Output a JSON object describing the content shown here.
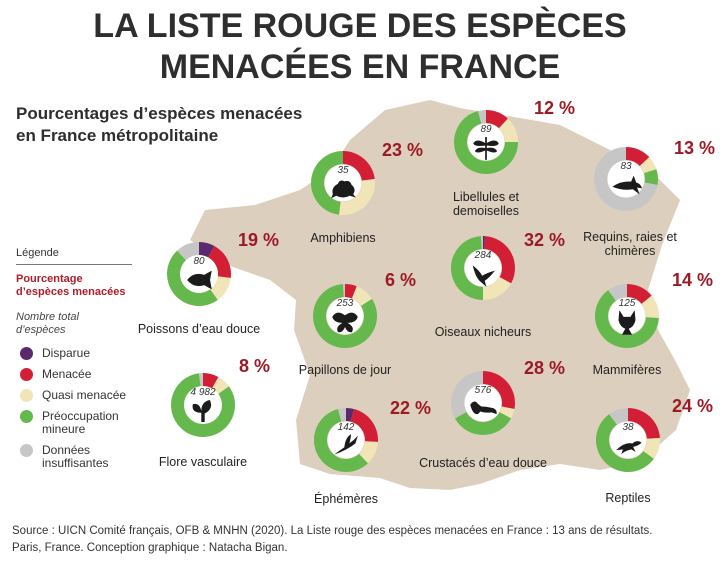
{
  "title_line1": "LA LISTE ROUGE DES ESPÈCES",
  "title_line2": "MENACÉES EN FRANCE",
  "subtitle_line1": "Pourcentages d’espèces menacées",
  "subtitle_line2": "en France métropolitaine",
  "legend": {
    "title": "Légende",
    "pct_line1": "Pourcentage",
    "pct_line2": "d’espèces menacées",
    "count_line1": "Nombre total",
    "count_line2": "d’espèces",
    "items": [
      {
        "key": "disparue",
        "lines": [
          "Disparue"
        ],
        "color": "#5b2a6e"
      },
      {
        "key": "menacee",
        "lines": [
          "Menacée"
        ],
        "color": "#d21f36"
      },
      {
        "key": "quasi",
        "lines": [
          "Quasi menacée"
        ],
        "color": "#f1e4b6"
      },
      {
        "key": "preoccupation",
        "lines": [
          "Préoccupation",
          "mineure"
        ],
        "color": "#65b84b"
      },
      {
        "key": "donnees",
        "lines": [
          "Données",
          "insuffisantes"
        ],
        "color": "#c6c6c6"
      }
    ]
  },
  "source_line1": "Source : UICN Comité français, OFB & MNHN (2020). La Liste rouge des espèces menacées en France : 13 ans de résultats.",
  "source_line2": "Paris, France. Conception graphique : Natacha Bigan.",
  "chart_data": {
    "type": "pie",
    "variant": "donut-small-multiples",
    "categories": [
      "Disparue",
      "Menacée",
      "Quasi menacée",
      "Préoccupation mineure",
      "Données insuffisantes"
    ],
    "colors": [
      "#5b2a6e",
      "#d21f36",
      "#f1e4b6",
      "#65b84b",
      "#c6c6c6"
    ],
    "series": [
      {
        "name": "Amphibiens",
        "label_lines": [
          "Amphibiens"
        ],
        "percent_label": "23 %",
        "count": "35",
        "icon": "frog-icon",
        "values": [
          0,
          23,
          29,
          48,
          0
        ]
      },
      {
        "name": "Libellules et demoiselles",
        "label_lines": [
          "Libellules et",
          "demoiselles"
        ],
        "percent_label": "12 %",
        "count": "89",
        "icon": "dragonfly-icon",
        "values": [
          0,
          12,
          13,
          71,
          4
        ]
      },
      {
        "name": "Requins, raies et chimères",
        "label_lines": [
          "Requins, raies et",
          "chimères"
        ],
        "percent_label": "13 %",
        "count": "83",
        "icon": "shark-icon",
        "values": [
          0,
          13,
          7,
          8,
          72
        ]
      },
      {
        "name": "Poissons d’eau douce",
        "label_lines": [
          "Poissons d’eau douce"
        ],
        "percent_label": "19 %",
        "count": "80",
        "icon": "fish-icon",
        "values": [
          8,
          19,
          13,
          48,
          12
        ]
      },
      {
        "name": "Oiseaux nicheurs",
        "label_lines": [
          "Oiseaux nicheurs"
        ],
        "percent_label": "32 %",
        "count": "284",
        "icon": "bird-icon",
        "values": [
          1,
          32,
          17,
          49,
          1
        ]
      },
      {
        "name": "Papillons de jour",
        "label_lines": [
          "Papillons de jour"
        ],
        "percent_label": "6 %",
        "count": "253",
        "icon": "butterfly-icon",
        "values": [
          0,
          6,
          10,
          83,
          1
        ]
      },
      {
        "name": "Mammifères",
        "label_lines": [
          "Mammifères"
        ],
        "percent_label": "14 %",
        "count": "125",
        "icon": "fox-icon",
        "values": [
          0,
          14,
          12,
          64,
          10
        ]
      },
      {
        "name": "Flore vasculaire",
        "label_lines": [
          "Flore vasculaire"
        ],
        "percent_label": "8 %",
        "count": "4 982",
        "icon": "leaf-icon",
        "values": [
          0,
          8,
          7,
          83,
          2
        ]
      },
      {
        "name": "Crustacés d’eau douce",
        "label_lines": [
          "Crustacés d’eau douce"
        ],
        "percent_label": "28 %",
        "count": "576",
        "icon": "crayfish-icon",
        "values": [
          0,
          28,
          5,
          34,
          33
        ]
      },
      {
        "name": "Éphémères",
        "label_lines": [
          "Éphémères"
        ],
        "percent_label": "22 %",
        "count": "142",
        "icon": "mayfly-icon",
        "values": [
          4,
          22,
          12,
          58,
          4
        ]
      },
      {
        "name": "Reptiles",
        "label_lines": [
          "Reptiles"
        ],
        "percent_label": "24 %",
        "count": "38",
        "icon": "lizard-icon",
        "values": [
          0,
          24,
          11,
          55,
          10
        ]
      }
    ]
  }
}
